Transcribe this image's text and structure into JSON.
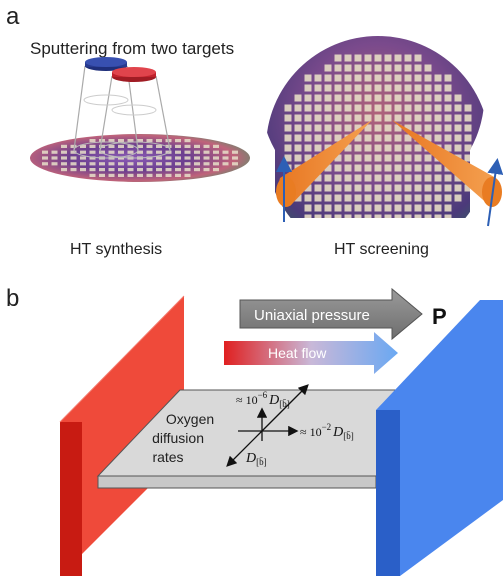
{
  "panel_a": {
    "label": "a",
    "title": "Sputtering from two targets",
    "left_caption": "HT synthesis",
    "right_caption": "HT screening"
  },
  "panel_b": {
    "label": "b",
    "arrow_pressure": "Uniaxial pressure",
    "pressure_symbol": "P",
    "arrow_heat": "Heat flow",
    "center_text": [
      "Oxygen",
      "diffusion",
      "rates"
    ],
    "rate_top_prefix": "≈ 10",
    "rate_top_exp": "−6",
    "rate_right_prefix": "≈ 10",
    "rate_right_exp": "−2",
    "rate_D": "D",
    "rate_sub": "[b̄]"
  },
  "colors": {
    "red_wall": "#e8231c",
    "blue_wall": "#3a7ff0",
    "pressure_arrow": "#8c8c8c",
    "wafer_purple": "#6a3f8e",
    "beam_orange": "#f08a2c"
  }
}
